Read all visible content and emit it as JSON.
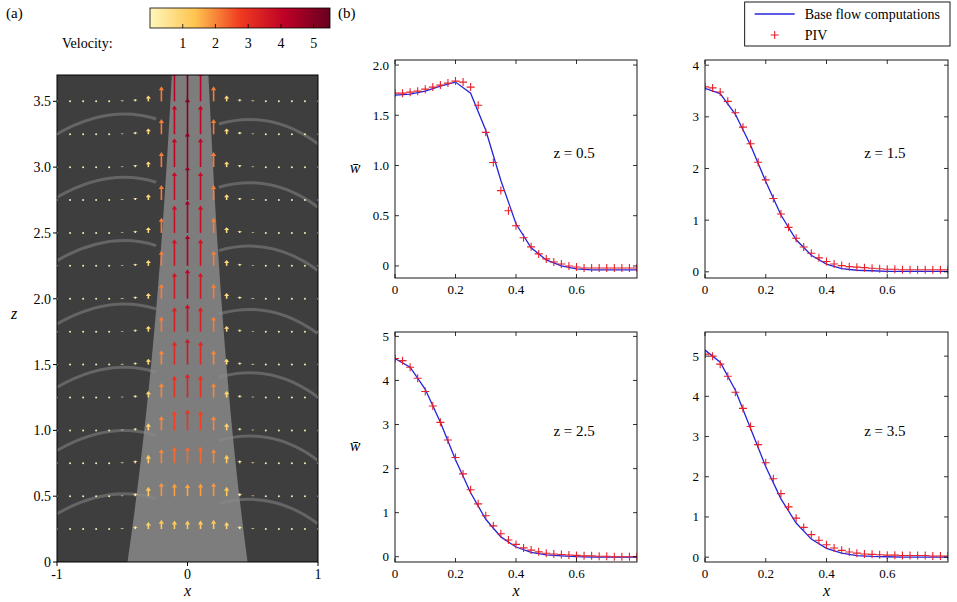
{
  "chart_data": [
    {
      "type": "quiver",
      "panel": "(a)",
      "xlabel": "x",
      "ylabel": "z",
      "xlim": [
        -1,
        1
      ],
      "xticks": [
        -1,
        0,
        1
      ],
      "ylim": [
        0,
        3.7
      ],
      "yticks": [
        0,
        0.5,
        {
          "value": 1,
          "label": "1.0"
        },
        1.5,
        {
          "value": 2,
          "label": "2.0"
        },
        2.5,
        {
          "value": 3,
          "label": "3.0"
        },
        3.5
      ],
      "colorbar": {
        "label": "Velocity:",
        "range": [
          0,
          5.5
        ],
        "ticks": [
          1,
          2,
          3,
          4,
          5
        ]
      },
      "x": [
        -1,
        -0.9,
        -0.8,
        -0.7,
        -0.6,
        -0.5,
        -0.4,
        -0.3,
        -0.2,
        -0.1,
        0,
        0.1,
        0.2,
        0.3,
        0.4,
        0.5,
        0.6,
        0.7,
        0.8,
        0.9,
        1
      ],
      "rows": [
        {
          "z": 0.25,
          "values": [
            0,
            0,
            0,
            0,
            0,
            0.1,
            0.4,
            1.0,
            1.3,
            1.2,
            1.2,
            1.2,
            1.3,
            1.0,
            0.4,
            0.1,
            0,
            0,
            0,
            0,
            0
          ]
        },
        {
          "z": 0.5,
          "values": [
            0,
            0,
            0,
            0,
            0,
            0.1,
            0.4,
            1.3,
            1.85,
            1.75,
            1.7,
            1.75,
            1.85,
            1.3,
            0.4,
            0.1,
            0,
            0,
            0,
            0,
            0
          ]
        },
        {
          "z": 0.75,
          "values": [
            0,
            0,
            0,
            0,
            0,
            0.1,
            0.4,
            1.2,
            2.0,
            2.3,
            2.3,
            2.3,
            2.0,
            1.2,
            0.4,
            0.1,
            0,
            0,
            0,
            0,
            0
          ]
        },
        {
          "z": 1.0,
          "values": [
            0,
            0,
            0,
            0,
            0,
            0.1,
            0.3,
            1.0,
            2.0,
            2.7,
            2.9,
            2.7,
            2.0,
            1.0,
            0.3,
            0.1,
            0,
            0,
            0,
            0,
            0
          ]
        },
        {
          "z": 1.25,
          "values": [
            0,
            0,
            0,
            0,
            0,
            0.1,
            0.3,
            0.9,
            2.0,
            3.0,
            3.3,
            3.0,
            2.0,
            0.9,
            0.3,
            0.1,
            0,
            0,
            0,
            0,
            0
          ]
        },
        {
          "z": 1.5,
          "values": [
            0,
            0,
            0,
            0,
            0,
            0.1,
            0.3,
            0.8,
            2.0,
            3.2,
            3.6,
            3.2,
            2.0,
            0.8,
            0.3,
            0.1,
            0,
            0,
            0,
            0,
            0
          ]
        },
        {
          "z": 1.75,
          "values": [
            0,
            0,
            0,
            0,
            0,
            0.1,
            0.3,
            0.8,
            2.1,
            3.4,
            3.8,
            3.4,
            2.1,
            0.8,
            0.3,
            0.1,
            0,
            0,
            0,
            0,
            0
          ]
        },
        {
          "z": 2.0,
          "values": [
            0,
            0,
            0,
            0,
            0,
            0.1,
            0.3,
            0.8,
            2.1,
            3.6,
            4.1,
            3.6,
            2.1,
            0.8,
            0.3,
            0.1,
            0,
            0,
            0,
            0,
            0
          ]
        },
        {
          "z": 2.25,
          "values": [
            0,
            0,
            0,
            0,
            0,
            0.1,
            0.3,
            0.8,
            2.1,
            3.7,
            4.3,
            3.7,
            2.1,
            0.8,
            0.3,
            0.1,
            0,
            0,
            0,
            0,
            0
          ]
        },
        {
          "z": 2.5,
          "values": [
            0,
            0,
            0,
            0,
            0,
            0.1,
            0.3,
            0.8,
            2.1,
            3.8,
            4.5,
            3.8,
            2.1,
            0.8,
            0.3,
            0.1,
            0,
            0,
            0,
            0,
            0
          ]
        },
        {
          "z": 2.75,
          "values": [
            0,
            0,
            0,
            0,
            0,
            0.1,
            0.3,
            0.8,
            2.1,
            3.9,
            4.7,
            3.9,
            2.1,
            0.8,
            0.3,
            0.1,
            0,
            0,
            0,
            0,
            0
          ]
        },
        {
          "z": 3.0,
          "values": [
            0,
            0,
            0,
            0,
            0,
            0.1,
            0.3,
            0.8,
            2.1,
            4.0,
            4.8,
            4.0,
            2.1,
            0.8,
            0.3,
            0.1,
            0,
            0,
            0,
            0,
            0
          ]
        },
        {
          "z": 3.25,
          "values": [
            0,
            0,
            0,
            0,
            0,
            0.1,
            0.3,
            0.8,
            2.1,
            4.0,
            5.0,
            4.0,
            2.1,
            0.8,
            0.3,
            0.1,
            0,
            0,
            0,
            0,
            0
          ]
        },
        {
          "z": 3.5,
          "values": [
            0,
            0,
            0,
            0,
            0,
            0.1,
            0.3,
            0.8,
            2.1,
            4.1,
            5.1,
            4.1,
            2.1,
            0.8,
            0.3,
            0.1,
            0,
            0,
            0,
            0,
            0
          ]
        }
      ]
    },
    {
      "type": "line",
      "panel": "(b)",
      "annotation": "z = 0.5",
      "ylabel": "w̄",
      "legend": "top-right",
      "xlim": [
        0,
        0.8
      ],
      "xticks": [
        0,
        0.2,
        0.4,
        0.6
      ],
      "ylim": [
        -0.12,
        2.05
      ],
      "yticks": [
        0,
        0.5,
        {
          "value": 1,
          "label": "1.0"
        },
        1.5,
        {
          "value": 2,
          "label": "2.0"
        }
      ],
      "series": [
        {
          "name": "Base flow computations",
          "type": "line",
          "color": "#2424dc",
          "x": [
            0,
            0.05,
            0.1,
            0.15,
            0.2,
            0.25,
            0.3,
            0.35,
            0.4,
            0.45,
            0.5,
            0.55,
            0.6,
            0.65,
            0.7,
            0.75,
            0.8
          ],
          "values": [
            1.7,
            1.71,
            1.74,
            1.79,
            1.83,
            1.72,
            1.35,
            0.85,
            0.42,
            0.18,
            0.06,
            0.0,
            -0.03,
            -0.04,
            -0.04,
            -0.04,
            -0.04
          ]
        },
        {
          "name": "PIV",
          "type": "scatter",
          "marker": "plus",
          "color": "#e8202a",
          "x": [
            0,
            0.025,
            0.05,
            0.075,
            0.1,
            0.125,
            0.15,
            0.175,
            0.2,
            0.225,
            0.25,
            0.275,
            0.3,
            0.325,
            0.35,
            0.375,
            0.4,
            0.425,
            0.45,
            0.475,
            0.5,
            0.525,
            0.55,
            0.575,
            0.6,
            0.625,
            0.65,
            0.675,
            0.7,
            0.725,
            0.75,
            0.775,
            0.8
          ],
          "values": [
            1.72,
            1.72,
            1.73,
            1.74,
            1.76,
            1.78,
            1.8,
            1.82,
            1.84,
            1.83,
            1.78,
            1.6,
            1.33,
            1.03,
            0.75,
            0.55,
            0.4,
            0.28,
            0.19,
            0.12,
            0.07,
            0.04,
            0.02,
            0.0,
            -0.01,
            -0.02,
            -0.02,
            -0.02,
            -0.02,
            -0.02,
            -0.02,
            -0.02,
            -0.02
          ]
        }
      ]
    },
    {
      "type": "line",
      "annotation": "z = 1.5",
      "xlim": [
        0,
        0.8
      ],
      "xticks": [
        0,
        0.2,
        0.4,
        0.6
      ],
      "ylim": [
        -0.12,
        4.1
      ],
      "yticks": [
        0,
        1,
        2,
        3,
        4
      ],
      "series": [
        {
          "type": "line",
          "color": "#2424dc",
          "x": [
            0,
            0.05,
            0.1,
            0.15,
            0.2,
            0.25,
            0.3,
            0.35,
            0.4,
            0.45,
            0.5,
            0.55,
            0.6,
            0.65,
            0.7,
            0.75,
            0.8
          ],
          "values": [
            3.55,
            3.45,
            3.05,
            2.45,
            1.75,
            1.1,
            0.62,
            0.32,
            0.15,
            0.06,
            0.03,
            0.02,
            0.01,
            0.01,
            0.01,
            0.01,
            0.01
          ]
        },
        {
          "type": "scatter",
          "marker": "plus",
          "color": "#e8202a",
          "x": [
            0,
            0.025,
            0.05,
            0.075,
            0.1,
            0.125,
            0.15,
            0.175,
            0.2,
            0.225,
            0.25,
            0.275,
            0.3,
            0.325,
            0.35,
            0.375,
            0.4,
            0.425,
            0.45,
            0.475,
            0.5,
            0.525,
            0.55,
            0.575,
            0.6,
            0.625,
            0.65,
            0.675,
            0.7,
            0.725,
            0.75,
            0.775,
            0.8
          ],
          "values": [
            3.58,
            3.56,
            3.48,
            3.3,
            3.08,
            2.8,
            2.48,
            2.12,
            1.78,
            1.42,
            1.12,
            0.86,
            0.65,
            0.48,
            0.36,
            0.27,
            0.2,
            0.15,
            0.12,
            0.1,
            0.09,
            0.08,
            0.07,
            0.06,
            0.05,
            0.05,
            0.04,
            0.04,
            0.04,
            0.04,
            0.04,
            0.04,
            0.04
          ]
        }
      ]
    },
    {
      "type": "line",
      "annotation": "z = 2.5",
      "xlabel": "x",
      "ylabel": "w̄",
      "xlim": [
        0,
        0.8
      ],
      "xticks": [
        0,
        0.2,
        0.4,
        0.6
      ],
      "ylim": [
        -0.12,
        5.1
      ],
      "yticks": [
        0,
        1,
        2,
        3,
        4,
        5
      ],
      "series": [
        {
          "type": "line",
          "color": "#2424dc",
          "x": [
            0,
            0.05,
            0.1,
            0.15,
            0.2,
            0.25,
            0.3,
            0.35,
            0.4,
            0.45,
            0.5,
            0.55,
            0.6,
            0.65,
            0.7,
            0.75,
            0.8
          ],
          "values": [
            4.5,
            4.3,
            3.8,
            3.05,
            2.2,
            1.45,
            0.85,
            0.45,
            0.22,
            0.1,
            0.04,
            0.02,
            0.0,
            -0.01,
            -0.01,
            -0.01,
            -0.01
          ]
        },
        {
          "type": "scatter",
          "marker": "plus",
          "color": "#e8202a",
          "x": [
            0,
            0.025,
            0.05,
            0.075,
            0.1,
            0.125,
            0.15,
            0.175,
            0.2,
            0.225,
            0.25,
            0.275,
            0.3,
            0.325,
            0.35,
            0.375,
            0.4,
            0.425,
            0.45,
            0.475,
            0.5,
            0.525,
            0.55,
            0.575,
            0.6,
            0.625,
            0.65,
            0.675,
            0.7,
            0.725,
            0.75,
            0.775,
            0.8
          ],
          "values": [
            4.5,
            4.45,
            4.3,
            4.05,
            3.75,
            3.42,
            3.05,
            2.65,
            2.25,
            1.88,
            1.52,
            1.2,
            0.93,
            0.7,
            0.52,
            0.38,
            0.28,
            0.2,
            0.15,
            0.11,
            0.08,
            0.06,
            0.05,
            0.04,
            0.03,
            0.02,
            0.02,
            0.01,
            0.01,
            0.0,
            0.0,
            0.0,
            0.0
          ]
        }
      ]
    },
    {
      "type": "line",
      "annotation": "z = 3.5",
      "xlabel": "x",
      "xlim": [
        0,
        0.8
      ],
      "xticks": [
        0,
        0.2,
        0.4,
        0.6
      ],
      "ylim": [
        -0.12,
        5.6
      ],
      "yticks": [
        0,
        1,
        2,
        3,
        4,
        5
      ],
      "series": [
        {
          "type": "line",
          "color": "#2424dc",
          "x": [
            0,
            0.05,
            0.1,
            0.15,
            0.2,
            0.25,
            0.3,
            0.35,
            0.4,
            0.45,
            0.5,
            0.55,
            0.6,
            0.65,
            0.7,
            0.75,
            0.8
          ],
          "values": [
            5.15,
            4.85,
            4.15,
            3.2,
            2.25,
            1.45,
            0.85,
            0.45,
            0.22,
            0.1,
            0.04,
            0.02,
            0.01,
            0.0,
            0.0,
            0.0,
            0.0
          ]
        },
        {
          "type": "scatter",
          "marker": "plus",
          "color": "#e8202a",
          "x": [
            0,
            0.025,
            0.05,
            0.075,
            0.1,
            0.125,
            0.15,
            0.175,
            0.2,
            0.225,
            0.25,
            0.275,
            0.3,
            0.325,
            0.35,
            0.375,
            0.4,
            0.425,
            0.45,
            0.475,
            0.5,
            0.525,
            0.55,
            0.575,
            0.6,
            0.625,
            0.65,
            0.675,
            0.7,
            0.725,
            0.75,
            0.775,
            0.8
          ],
          "values": [
            5.05,
            5.0,
            4.8,
            4.5,
            4.1,
            3.7,
            3.25,
            2.8,
            2.35,
            1.95,
            1.58,
            1.25,
            0.97,
            0.74,
            0.56,
            0.42,
            0.31,
            0.23,
            0.17,
            0.13,
            0.1,
            0.08,
            0.07,
            0.06,
            0.05,
            0.05,
            0.04,
            0.04,
            0.04,
            0.04,
            0.03,
            0.03,
            0.03
          ]
        }
      ]
    }
  ]
}
